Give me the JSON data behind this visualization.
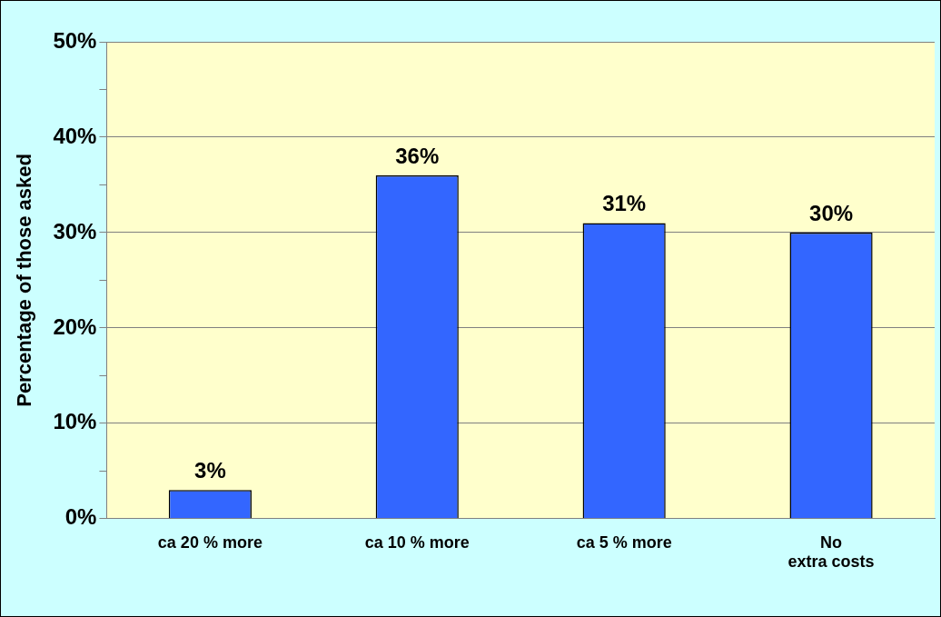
{
  "chart_data": {
    "type": "bar",
    "ylabel": "Percentage of those asked",
    "categories": [
      "ca 20 % more",
      "ca 10 % more",
      "ca 5 % more",
      "No extra costs"
    ],
    "values": [
      3,
      36,
      31,
      30
    ],
    "color": "#3366ff",
    "value_labels": [
      "3%",
      "36%",
      "31%",
      "30%"
    ],
    "ylim": [
      0,
      50
    ],
    "yticks": [
      {
        "value": 0,
        "label": "0%"
      },
      {
        "value": 5,
        "label": null
      },
      {
        "value": 10,
        "label": "10%"
      },
      {
        "value": 15,
        "label": null
      },
      {
        "value": 20,
        "label": "20%"
      },
      {
        "value": 25,
        "label": null
      },
      {
        "value": 30,
        "label": "30%"
      },
      {
        "value": 35,
        "label": null
      },
      {
        "value": 40,
        "label": "40%"
      },
      {
        "value": 45,
        "label": null
      },
      {
        "value": 50,
        "label": "50%"
      }
    ],
    "grid": "y",
    "legend": false
  }
}
